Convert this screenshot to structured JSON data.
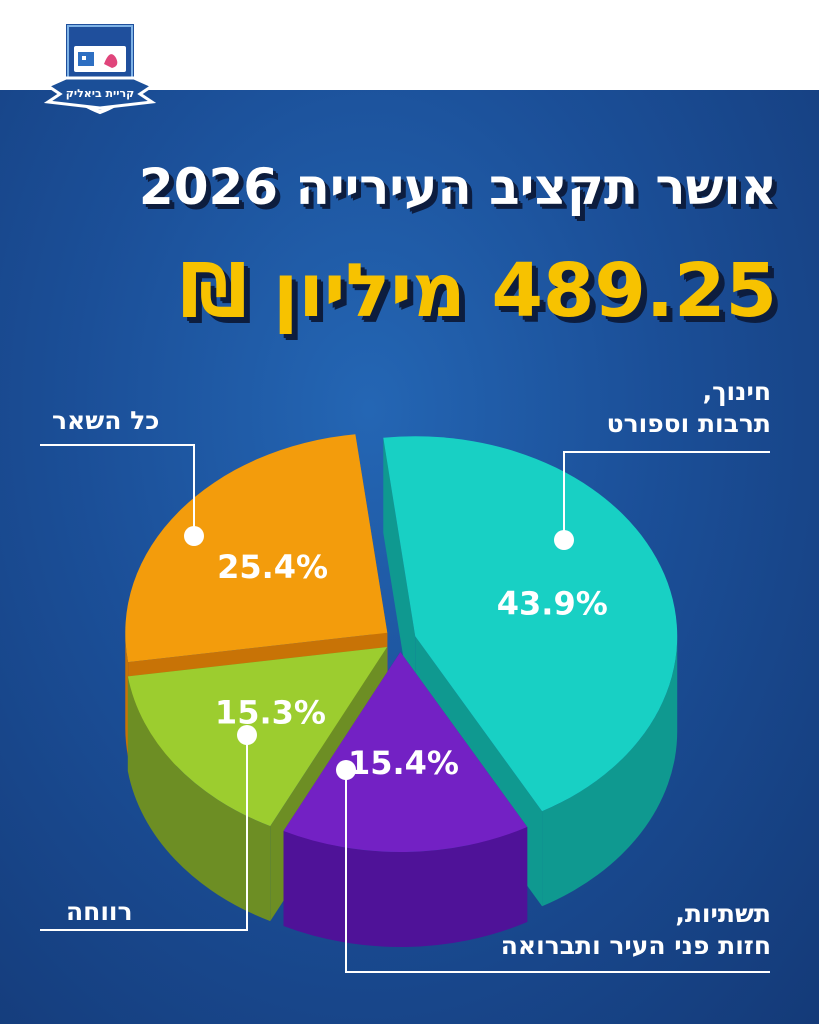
{
  "logo": {
    "caption": "קריית ביאליק",
    "colors": {
      "shield": "#1f4f9c",
      "ribbon": "#1b4f98",
      "border": "#ffffff"
    }
  },
  "header": {
    "title": "אושר תקציב העירייה 2026",
    "amount_value": "489.25",
    "amount_unit": "מיליון ₪"
  },
  "colors": {
    "background": "#1b4f98",
    "title": "#ffffff",
    "amount": "#f7c200",
    "title_shadow": "#0d1d3e"
  },
  "chart_data": {
    "type": "pie",
    "style": "3d-exploded",
    "slices": [
      {
        "label_lines": [
          "חינוך,",
          "תרבות וספורט"
        ],
        "value": 43.9,
        "value_label": "43.9%",
        "color": "#18d0c4",
        "side_color": "#0f9990"
      },
      {
        "label_lines": [
          "תשתיות,",
          "חזות פני העיר ותברואה"
        ],
        "value": 15.4,
        "value_label": "15.4%",
        "color": "#7321c4",
        "side_color": "#4f1298"
      },
      {
        "label_lines": [
          "רווחה"
        ],
        "value": 15.3,
        "value_label": "15.3%",
        "color": "#9ccd2f",
        "side_color": "#6d8e24"
      },
      {
        "label_lines": [
          "כל השאר"
        ],
        "value": 25.4,
        "value_label": "25.4%",
        "color": "#f39c0c",
        "side_color": "#c87306"
      }
    ]
  }
}
